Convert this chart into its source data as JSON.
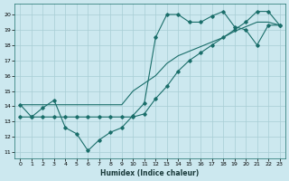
{
  "xlabel": "Humidex (Indice chaleur)",
  "bg_color": "#cce8ef",
  "grid_color": "#a8cdd4",
  "line_color": "#1a6e6a",
  "xlim": [
    -0.5,
    23.5
  ],
  "ylim": [
    10.6,
    20.7
  ],
  "xticks": [
    0,
    1,
    2,
    3,
    4,
    5,
    6,
    7,
    8,
    9,
    10,
    11,
    12,
    13,
    14,
    15,
    16,
    17,
    18,
    19,
    20,
    21,
    22,
    23
  ],
  "yticks": [
    11,
    12,
    13,
    14,
    15,
    16,
    17,
    18,
    19,
    20
  ],
  "line1_x": [
    0,
    1,
    2,
    3,
    4,
    5,
    6,
    7,
    8,
    9,
    10,
    11,
    12,
    13,
    14,
    15,
    16,
    17,
    18,
    19,
    20,
    21,
    22,
    23
  ],
  "line1_y": [
    14.1,
    13.3,
    13.9,
    14.4,
    12.6,
    12.2,
    11.1,
    11.8,
    12.3,
    12.6,
    13.4,
    14.2,
    18.5,
    20.0,
    20.0,
    19.5,
    19.5,
    19.9,
    20.2,
    19.2,
    19.0,
    18.0,
    19.3,
    19.3
  ],
  "line2_x": [
    0,
    1,
    2,
    3,
    4,
    5,
    6,
    7,
    8,
    9,
    10,
    11,
    12,
    13,
    14,
    15,
    16,
    17,
    18,
    19,
    20,
    21,
    22,
    23
  ],
  "line2_y": [
    13.3,
    13.3,
    13.3,
    13.3,
    13.3,
    13.3,
    13.3,
    13.3,
    13.3,
    13.3,
    13.3,
    13.5,
    14.5,
    15.3,
    16.3,
    17.0,
    17.5,
    18.0,
    18.5,
    19.0,
    19.5,
    20.2,
    20.2,
    19.3
  ],
  "line3_x": [
    0,
    1,
    2,
    3,
    4,
    5,
    6,
    7,
    8,
    9,
    10,
    11,
    12,
    13,
    14,
    15,
    16,
    17,
    18,
    19,
    20,
    21,
    22,
    23
  ],
  "line3_y": [
    14.1,
    14.1,
    14.1,
    14.1,
    14.1,
    14.1,
    14.1,
    14.1,
    14.1,
    14.1,
    15.0,
    15.5,
    16.0,
    16.8,
    17.3,
    17.6,
    17.9,
    18.2,
    18.5,
    18.9,
    19.2,
    19.5,
    19.5,
    19.3
  ]
}
